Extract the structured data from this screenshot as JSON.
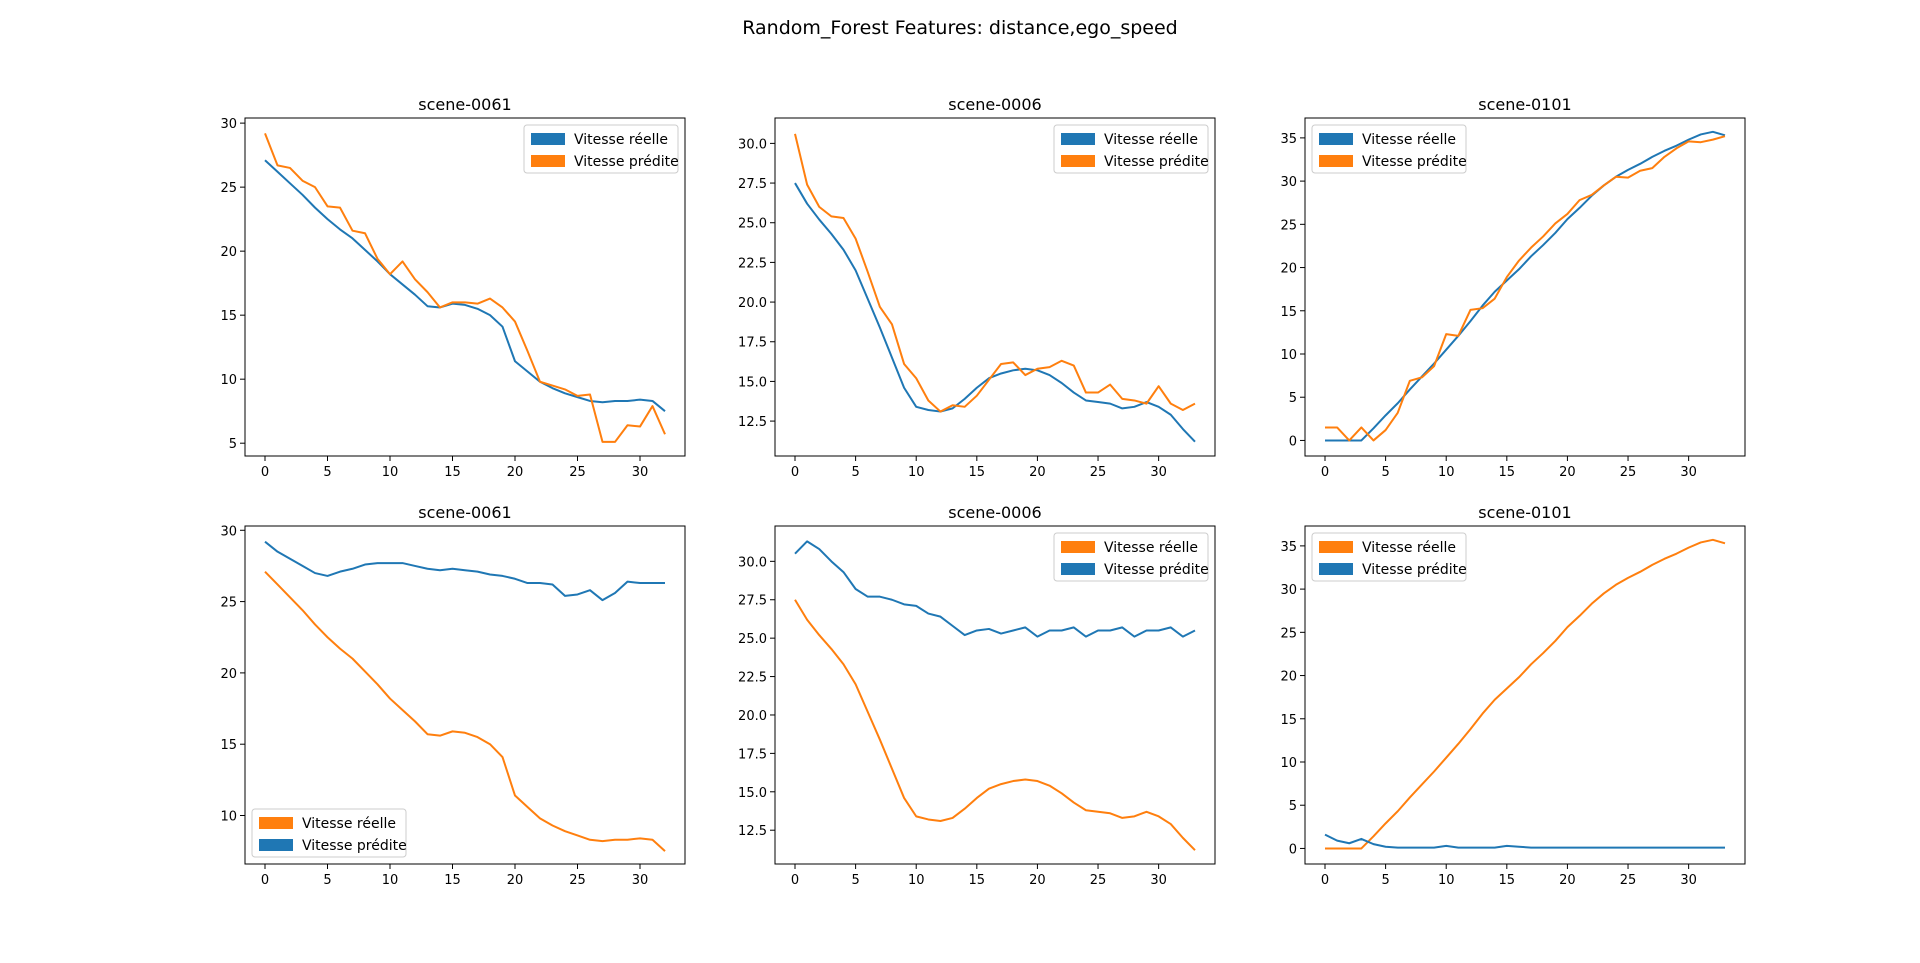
{
  "figure": {
    "title": "Random_Forest Features: distance,ego_speed"
  },
  "colors": {
    "blue": "#1f77b4",
    "orange": "#ff7f0e"
  },
  "chart_data": [
    {
      "type": "line",
      "title": "scene-0061",
      "legend": "top-right",
      "grid": false,
      "xlim": [
        -1.6,
        33.6
      ],
      "ylim": [
        4.0,
        30.4
      ],
      "xticks": [
        0,
        5,
        10,
        15,
        20,
        25,
        30
      ],
      "yticks": [
        5,
        10,
        15,
        20,
        25,
        30
      ],
      "series": [
        {
          "name": "Vitesse réelle",
          "color": "#1f77b4",
          "values": [
            27.1,
            26.2,
            25.3,
            24.4,
            23.4,
            22.5,
            21.7,
            21.0,
            20.1,
            19.2,
            18.2,
            17.4,
            16.6,
            15.7,
            15.6,
            15.9,
            15.8,
            15.5,
            15.0,
            14.1,
            11.4,
            10.6,
            9.8,
            9.3,
            8.9,
            8.6,
            8.3,
            8.2,
            8.3,
            8.3,
            8.4,
            8.3,
            7.5
          ]
        },
        {
          "name": "Vitesse prédite",
          "color": "#ff7f0e",
          "values": [
            29.2,
            26.7,
            26.5,
            25.5,
            25.0,
            23.5,
            23.4,
            21.6,
            21.4,
            19.4,
            18.2,
            19.2,
            17.8,
            16.8,
            15.6,
            16.0,
            16.0,
            15.9,
            16.3,
            15.6,
            14.5,
            12.2,
            9.8,
            9.5,
            9.2,
            8.7,
            8.8,
            5.1,
            5.1,
            6.4,
            6.3,
            7.9,
            5.7
          ]
        }
      ]
    },
    {
      "type": "line",
      "title": "scene-0006",
      "legend": "top-right",
      "grid": false,
      "xlim": [
        -1.65,
        34.65
      ],
      "ylim": [
        10.3,
        31.6
      ],
      "xticks": [
        0,
        5,
        10,
        15,
        20,
        25,
        30
      ],
      "yticks": [
        12.5,
        15.0,
        17.5,
        20.0,
        22.5,
        25.0,
        27.5,
        30.0
      ],
      "series": [
        {
          "name": "Vitesse réelle",
          "color": "#1f77b4",
          "values": [
            27.5,
            26.2,
            25.2,
            24.3,
            23.3,
            22.0,
            20.2,
            18.4,
            16.5,
            14.6,
            13.4,
            13.2,
            13.1,
            13.3,
            13.9,
            14.6,
            15.2,
            15.5,
            15.7,
            15.8,
            15.7,
            15.4,
            14.9,
            14.3,
            13.8,
            13.7,
            13.6,
            13.3,
            13.4,
            13.7,
            13.4,
            12.9,
            12.0,
            11.2
          ]
        },
        {
          "name": "Vitesse prédite",
          "color": "#ff7f0e",
          "values": [
            30.6,
            27.4,
            26.0,
            25.4,
            25.3,
            24.0,
            21.9,
            19.7,
            18.6,
            16.1,
            15.2,
            13.8,
            13.1,
            13.5,
            13.4,
            14.1,
            15.1,
            16.1,
            16.2,
            15.4,
            15.8,
            15.9,
            16.3,
            16.0,
            14.3,
            14.3,
            14.8,
            13.9,
            13.8,
            13.6,
            14.7,
            13.6,
            13.2,
            13.6
          ]
        }
      ]
    },
    {
      "type": "line",
      "title": "scene-0101",
      "legend": "top-left",
      "grid": false,
      "xlim": [
        -1.65,
        34.65
      ],
      "ylim": [
        -1.8,
        37.3
      ],
      "xticks": [
        0,
        5,
        10,
        15,
        20,
        25,
        30
      ],
      "yticks": [
        0,
        5,
        10,
        15,
        20,
        25,
        30,
        35
      ],
      "series": [
        {
          "name": "Vitesse réelle",
          "color": "#1f77b4",
          "values": [
            0.0,
            0.0,
            0.0,
            0.0,
            1.4,
            2.9,
            4.3,
            5.9,
            7.4,
            8.9,
            10.5,
            12.1,
            13.8,
            15.6,
            17.2,
            18.5,
            19.8,
            21.3,
            22.6,
            24.0,
            25.6,
            26.9,
            28.3,
            29.5,
            30.5,
            31.3,
            32.0,
            32.8,
            33.5,
            34.1,
            34.8,
            35.4,
            35.7,
            35.3
          ]
        },
        {
          "name": "Vitesse prédite",
          "color": "#ff7f0e",
          "values": [
            1.5,
            1.5,
            0.0,
            1.5,
            0.0,
            1.2,
            3.2,
            6.9,
            7.3,
            8.6,
            12.3,
            12.1,
            15.1,
            15.3,
            16.4,
            18.9,
            20.8,
            22.3,
            23.6,
            25.1,
            26.2,
            27.8,
            28.4,
            29.5,
            30.5,
            30.4,
            31.2,
            31.5,
            32.8,
            33.8,
            34.6,
            34.5,
            34.8,
            35.2
          ]
        }
      ]
    },
    {
      "type": "line",
      "title": "scene-0061",
      "legend": "bottom-left",
      "grid": false,
      "xlim": [
        -1.6,
        33.6
      ],
      "ylim": [
        6.6,
        30.3
      ],
      "xticks": [
        0,
        5,
        10,
        15,
        20,
        25,
        30
      ],
      "yticks": [
        10,
        15,
        20,
        25,
        30
      ],
      "series": [
        {
          "name": "Vitesse réelle",
          "color": "#ff7f0e",
          "values": [
            27.1,
            26.2,
            25.3,
            24.4,
            23.4,
            22.5,
            21.7,
            21.0,
            20.1,
            19.2,
            18.2,
            17.4,
            16.6,
            15.7,
            15.6,
            15.9,
            15.8,
            15.5,
            15.0,
            14.1,
            11.4,
            10.6,
            9.8,
            9.3,
            8.9,
            8.6,
            8.3,
            8.2,
            8.3,
            8.3,
            8.4,
            8.3,
            7.5
          ]
        },
        {
          "name": "Vitesse prédite",
          "color": "#1f77b4",
          "values": [
            29.2,
            28.5,
            28.0,
            27.5,
            27.0,
            26.8,
            27.1,
            27.3,
            27.6,
            27.7,
            27.7,
            27.7,
            27.5,
            27.3,
            27.2,
            27.3,
            27.2,
            27.1,
            26.9,
            26.8,
            26.6,
            26.3,
            26.3,
            26.2,
            25.4,
            25.5,
            25.8,
            25.1,
            25.6,
            26.4,
            26.3,
            26.3,
            26.3
          ]
        }
      ]
    },
    {
      "type": "line",
      "title": "scene-0006",
      "legend": "top-right",
      "grid": false,
      "xlim": [
        -1.65,
        34.65
      ],
      "ylim": [
        10.3,
        32.3
      ],
      "xticks": [
        0,
        5,
        10,
        15,
        20,
        25,
        30
      ],
      "yticks": [
        12.5,
        15.0,
        17.5,
        20.0,
        22.5,
        25.0,
        27.5,
        30.0
      ],
      "series": [
        {
          "name": "Vitesse réelle",
          "color": "#ff7f0e",
          "values": [
            27.5,
            26.2,
            25.2,
            24.3,
            23.3,
            22.0,
            20.2,
            18.4,
            16.5,
            14.6,
            13.4,
            13.2,
            13.1,
            13.3,
            13.9,
            14.6,
            15.2,
            15.5,
            15.7,
            15.8,
            15.7,
            15.4,
            14.9,
            14.3,
            13.8,
            13.7,
            13.6,
            13.3,
            13.4,
            13.7,
            13.4,
            12.9,
            12.0,
            11.2
          ]
        },
        {
          "name": "Vitesse prédite",
          "color": "#1f77b4",
          "values": [
            30.5,
            31.3,
            30.8,
            30.0,
            29.3,
            28.2,
            27.7,
            27.7,
            27.5,
            27.2,
            27.1,
            26.6,
            26.4,
            25.8,
            25.2,
            25.5,
            25.6,
            25.3,
            25.5,
            25.7,
            25.1,
            25.5,
            25.5,
            25.7,
            25.1,
            25.5,
            25.5,
            25.7,
            25.1,
            25.5,
            25.5,
            25.7,
            25.1,
            25.5
          ]
        }
      ]
    },
    {
      "type": "line",
      "title": "scene-0101",
      "legend": "top-left",
      "grid": false,
      "xlim": [
        -1.65,
        34.65
      ],
      "ylim": [
        -1.8,
        37.3
      ],
      "xticks": [
        0,
        5,
        10,
        15,
        20,
        25,
        30
      ],
      "yticks": [
        0,
        5,
        10,
        15,
        20,
        25,
        30,
        35
      ],
      "series": [
        {
          "name": "Vitesse réelle",
          "color": "#ff7f0e",
          "values": [
            0.0,
            0.0,
            0.0,
            0.0,
            1.4,
            2.9,
            4.3,
            5.9,
            7.4,
            8.9,
            10.5,
            12.1,
            13.8,
            15.6,
            17.2,
            18.5,
            19.8,
            21.3,
            22.6,
            24.0,
            25.6,
            26.9,
            28.3,
            29.5,
            30.5,
            31.3,
            32.0,
            32.8,
            33.5,
            34.1,
            34.8,
            35.4,
            35.7,
            35.3
          ]
        },
        {
          "name": "Vitesse prédite",
          "color": "#1f77b4",
          "values": [
            1.6,
            0.9,
            0.6,
            1.1,
            0.5,
            0.2,
            0.1,
            0.1,
            0.1,
            0.1,
            0.3,
            0.1,
            0.1,
            0.1,
            0.1,
            0.3,
            0.2,
            0.1,
            0.1,
            0.1,
            0.1,
            0.1,
            0.1,
            0.1,
            0.1,
            0.1,
            0.1,
            0.1,
            0.1,
            0.1,
            0.1,
            0.1,
            0.1,
            0.1
          ]
        }
      ]
    }
  ]
}
